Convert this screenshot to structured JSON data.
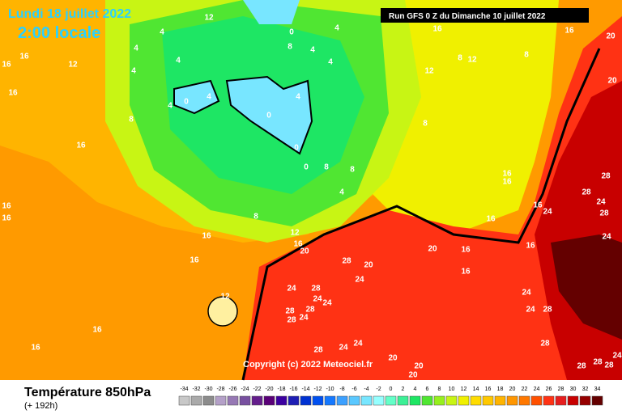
{
  "header": {
    "date": "Lundi 18 juillet 2022",
    "time": "2:00 locale",
    "run": "Run GFS 0 Z du Dimanche 10 juillet 2022"
  },
  "copyright": "Copyright (c) 2022 Meteociel.fr",
  "footer": {
    "title": "Température 850hPa",
    "lead": "(+ 192h)"
  },
  "scale": {
    "labels": [
      -34,
      -32,
      -30,
      -28,
      -26,
      -24,
      -22,
      -20,
      -18,
      -16,
      -14,
      -12,
      -10,
      -8,
      -6,
      -4,
      -2,
      0,
      2,
      4,
      6,
      8,
      10,
      12,
      14,
      16,
      18,
      20,
      22,
      24,
      26,
      28,
      30,
      32,
      34
    ],
    "colors": [
      "#c8c8c8",
      "#aaaaaa",
      "#8c8c8c",
      "#b4a0c8",
      "#9678b4",
      "#7850a0",
      "#641e8c",
      "#5a0078",
      "#3c00a0",
      "#1e1eb4",
      "#0032d2",
      "#0050f0",
      "#1478ff",
      "#3ca0ff",
      "#5ac8ff",
      "#78e6ff",
      "#96ffff",
      "#64ffc8",
      "#3cf096",
      "#1ee664",
      "#50e632",
      "#96f01e",
      "#c8f514",
      "#f0f000",
      "#ffdc00",
      "#ffc800",
      "#ffb400",
      "#ff9600",
      "#ff7800",
      "#ff5000",
      "#ff3214",
      "#e61e1e",
      "#c80000",
      "#960000",
      "#640000"
    ]
  },
  "map_labels": [
    12,
    16,
    16,
    16,
    4,
    4,
    12,
    8,
    16,
    16,
    16,
    16,
    16,
    12,
    16,
    16,
    4,
    4,
    4,
    0,
    4,
    0,
    4,
    0,
    0,
    8,
    8,
    4,
    8,
    12,
    16,
    20,
    28,
    20,
    24,
    24,
    28,
    24,
    24,
    28,
    28,
    24,
    28,
    4,
    4,
    4,
    8,
    0,
    8,
    12,
    8,
    16,
    16,
    16,
    16,
    24,
    20,
    16,
    16,
    16,
    24,
    24,
    28,
    28,
    24,
    28,
    28,
    24,
    20,
    16,
    20,
    28,
    24,
    24,
    20,
    20,
    20,
    28,
    28,
    28,
    28,
    24,
    16,
    12,
    8
  ]
}
